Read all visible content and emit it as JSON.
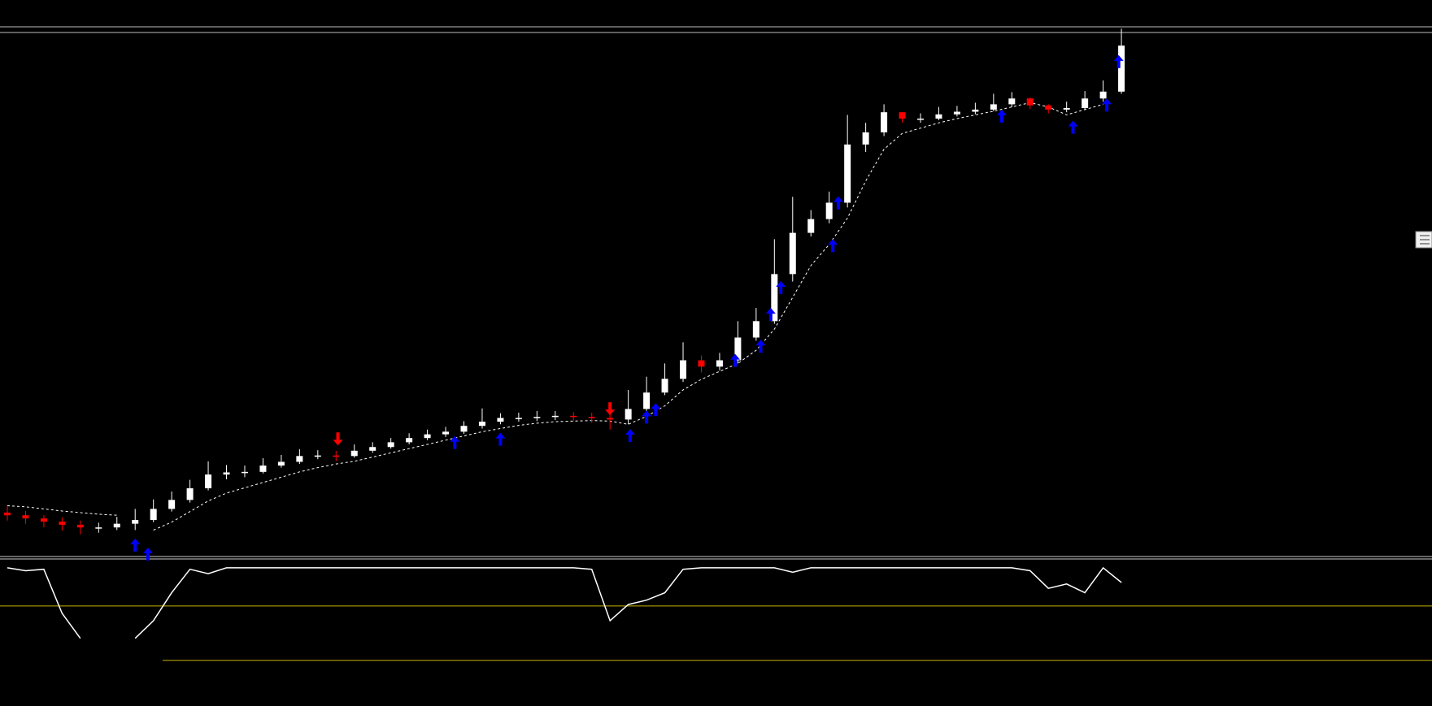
{
  "chart_data": [
    {
      "type": "candlestick",
      "ylim": [
        0,
        100
      ],
      "up_color": "#ffffff",
      "down_color": "#ff0000",
      "open": [
        8.3,
        7.8,
        7.2,
        6.6,
        6.0,
        5.4,
        5.5,
        6.2,
        6.9,
        9.0,
        10.7,
        12.9,
        15.5,
        15.9,
        16.0,
        17.2,
        17.9,
        19.0,
        19.1,
        19.0,
        20.0,
        20.7,
        21.6,
        22.4,
        23.1,
        23.6,
        24.7,
        25.5,
        26.2,
        26.2,
        26.4,
        26.6,
        26.4,
        26.2,
        25.9,
        27.9,
        31.0,
        33.6,
        37.1,
        35.9,
        37.1,
        41.4,
        44.5,
        53.4,
        61.2,
        63.8,
        66.9,
        77.9,
        80.2,
        84.0,
        82.8,
        82.8,
        83.6,
        84.1,
        84.5,
        85.5,
        86.6,
        85.3,
        84.5,
        84.8,
        86.6,
        87.9
      ],
      "high": [
        9.5,
        8.6,
        7.8,
        7.4,
        6.8,
        6.4,
        7.5,
        9.0,
        10.8,
        12.3,
        14.5,
        18.0,
        17.3,
        17.2,
        18.6,
        19.2,
        20.3,
        20.1,
        20.0,
        21.2,
        21.6,
        22.4,
        23.3,
        24.0,
        24.5,
        25.6,
        28.0,
        27.1,
        27.2,
        27.5,
        27.5,
        27.3,
        27.2,
        27.0,
        31.5,
        34.0,
        36.5,
        40.5,
        38.0,
        38.5,
        44.5,
        47.0,
        60.0,
        68.0,
        65.5,
        69.0,
        83.5,
        82.0,
        85.5,
        84.0,
        83.8,
        85.0,
        85.2,
        85.8,
        87.5,
        87.8,
        86.8,
        85.5,
        86.0,
        88.0,
        90.0,
        99.8
      ],
      "low": [
        6.8,
        6.2,
        5.5,
        4.9,
        4.2,
        4.5,
        5.0,
        5.0,
        6.5,
        8.5,
        10.2,
        12.5,
        14.6,
        15.0,
        15.7,
        16.8,
        17.5,
        18.4,
        18.0,
        18.7,
        19.6,
        20.4,
        21.2,
        22.0,
        22.6,
        23.2,
        24.2,
        25.0,
        25.5,
        25.6,
        25.8,
        25.6,
        25.3,
        24.0,
        25.0,
        27.5,
        30.5,
        33.0,
        34.8,
        35.2,
        36.5,
        40.8,
        44.0,
        52.0,
        60.5,
        63.0,
        66.0,
        76.5,
        79.5,
        82.0,
        82.0,
        82.5,
        83.2,
        83.6,
        84.2,
        85.0,
        84.6,
        83.8,
        84.0,
        84.5,
        86.0,
        87.5
      ],
      "close": [
        7.8,
        7.2,
        6.6,
        6.0,
        5.5,
        5.5,
        6.2,
        6.9,
        9.0,
        10.7,
        12.9,
        15.5,
        15.9,
        16.0,
        17.2,
        17.9,
        19.0,
        19.1,
        19.0,
        20.0,
        20.7,
        21.6,
        22.4,
        23.1,
        23.6,
        24.7,
        25.5,
        26.2,
        26.2,
        26.4,
        26.6,
        26.4,
        26.2,
        25.9,
        27.9,
        31.0,
        33.6,
        37.1,
        35.9,
        37.1,
        41.4,
        44.5,
        53.4,
        61.2,
        63.8,
        66.9,
        77.9,
        80.2,
        84.0,
        82.8,
        82.8,
        83.6,
        84.1,
        84.5,
        85.5,
        86.6,
        85.3,
        84.5,
        84.8,
        86.6,
        87.9,
        96.6
      ],
      "stop_line": {
        "color": "#ffffff",
        "values": [
          9.6,
          9.4,
          9.0,
          8.6,
          8.3,
          8.0,
          7.8,
          null,
          5.0,
          6.5,
          8.5,
          10.5,
          12.0,
          13.0,
          14.0,
          15.0,
          16.0,
          16.8,
          17.5,
          18.0,
          18.8,
          19.6,
          20.4,
          21.2,
          22.0,
          22.8,
          23.6,
          24.2,
          24.8,
          25.2,
          25.5,
          25.6,
          25.7,
          25.6,
          25.0,
          26.5,
          28.5,
          31.5,
          33.5,
          35.0,
          36.5,
          39.0,
          43.0,
          49.0,
          55.0,
          59.0,
          64.0,
          71.0,
          77.0,
          80.0,
          81.0,
          82.0,
          82.8,
          83.5,
          84.2,
          85.0,
          85.8,
          85.0,
          83.5,
          84.5,
          85.5,
          null
        ]
      },
      "buy_signals": {
        "color": "#0000ff",
        "x": [
          7.0,
          7.7,
          24.5,
          27.0,
          34.1,
          35.0,
          35.5,
          39.85,
          41.25,
          41.8,
          42.35,
          45.2,
          45.5,
          54.45,
          58.35,
          60.2,
          60.85
        ],
        "values": [
          3.4,
          1.7,
          22.8,
          23.4,
          24.1,
          27.6,
          29.0,
          38.3,
          41.0,
          47.0,
          52.1,
          60.0,
          68.1,
          84.5,
          82.4,
          86.6,
          94.8
        ]
      },
      "sell_signals": {
        "color": "#ff0000",
        "x": [
          18.1,
          33.0
        ],
        "values": [
          21.0,
          26.7
        ]
      }
    },
    {
      "type": "line",
      "ylim": [
        0,
        100
      ],
      "color": "#ffffff",
      "values": [
        94,
        92,
        93,
        63,
        46,
        null,
        null,
        46,
        58,
        77,
        93,
        90,
        94,
        94,
        94,
        94,
        94,
        94,
        94,
        94,
        94,
        94,
        94,
        94,
        94,
        94,
        94,
        94,
        94,
        94,
        94,
        94,
        93,
        58,
        69,
        72,
        77,
        93,
        94,
        94,
        94,
        94,
        94,
        91,
        94,
        94,
        94,
        94,
        94,
        94,
        94,
        94,
        94,
        94,
        94,
        94,
        92,
        80,
        83,
        77,
        94,
        84
      ],
      "levels": [
        68,
        31
      ],
      "level_color": "#c8b400"
    }
  ]
}
